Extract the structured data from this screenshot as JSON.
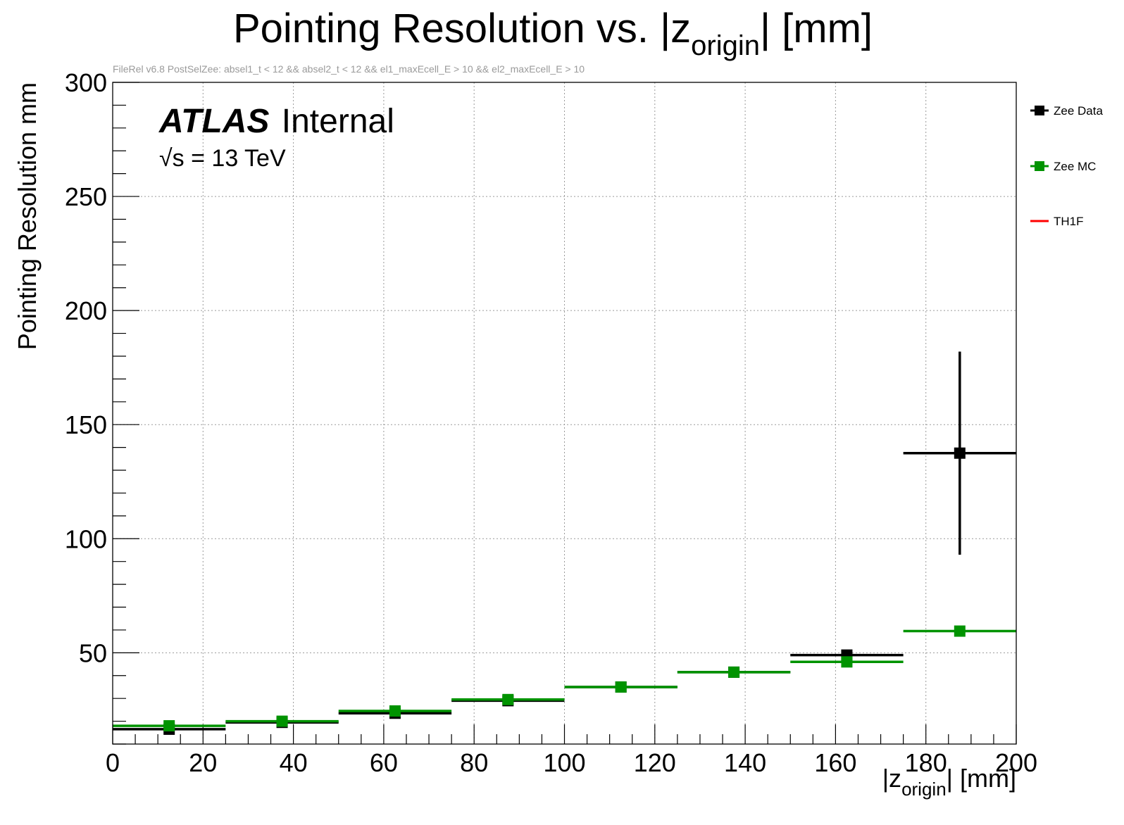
{
  "chart_data": {
    "type": "scatter",
    "title": {
      "main": "Pointing Resolution vs. |z",
      "sub": "origin",
      "suffix": "| [mm]"
    },
    "subtitle": "FileRel v6.8 PostSelZee: absel1_t < 12 && absel2_t < 12 && el1_maxEcell_E > 10 && el2_maxEcell_E > 10",
    "xlabel": {
      "main": "|z",
      "sub": "origin",
      "suffix": "| [mm]"
    },
    "ylabel": "Pointing Resolution mm",
    "xlim": [
      0,
      200
    ],
    "ylim": [
      10,
      300
    ],
    "x_ticks": [
      0,
      20,
      40,
      60,
      80,
      100,
      120,
      140,
      160,
      180,
      200
    ],
    "y_ticks": [
      50,
      100,
      150,
      200,
      250,
      300
    ],
    "grid": true,
    "annotations": {
      "atlas": "ATLAS",
      "internal": "Internal",
      "energy": "√s = 13 TeV"
    },
    "legend": {
      "placement": "right",
      "entries": [
        "Zee Data",
        "Zee MC",
        "TH1F"
      ]
    },
    "series": [
      {
        "name": "Zee Data",
        "color": "#000000",
        "x": [
          12.5,
          37.5,
          62.5,
          87.5,
          112.5,
          137.5,
          162.5,
          187.5
        ],
        "xerr": [
          12.5,
          12.5,
          12.5,
          12.5,
          12.5,
          12.5,
          12.5,
          12.5
        ],
        "y": [
          16.5,
          19.5,
          23.5,
          29,
          35,
          41.5,
          49,
          137.5
        ],
        "yerr": [
          0.6,
          0.5,
          0.5,
          0.6,
          0.6,
          0.8,
          1.5,
          44.5
        ]
      },
      {
        "name": "Zee MC",
        "color": "#009300",
        "x": [
          12.5,
          37.5,
          62.5,
          87.5,
          112.5,
          137.5,
          162.5,
          187.5
        ],
        "xerr": [
          12.5,
          12.5,
          12.5,
          12.5,
          12.5,
          12.5,
          12.5,
          12.5
        ],
        "y": [
          18,
          20,
          24.5,
          29.5,
          35,
          41.5,
          46,
          59.5
        ],
        "yerr": [
          0.3,
          0.3,
          0.3,
          0.4,
          0.4,
          0.5,
          0.6,
          1.0
        ]
      },
      {
        "name": "TH1F",
        "color": "#ff0000",
        "x": [],
        "y": []
      }
    ]
  }
}
